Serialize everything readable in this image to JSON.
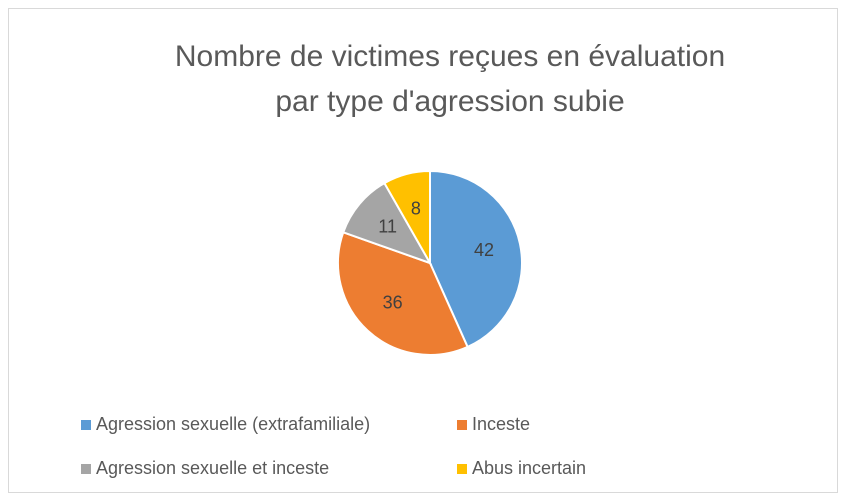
{
  "chart_data": {
    "type": "pie",
    "title": [
      "Nombre de victimes reçues en évaluation",
      "par type d'agression subie"
    ],
    "categories": [
      "Agression sexuelle (extrafamiliale)",
      "Inceste",
      "Agression sexuelle et inceste",
      "Abus incertain"
    ],
    "values": [
      42,
      36,
      11,
      8
    ],
    "colors": [
      "#5b9bd5",
      "#ed7d31",
      "#a5a5a5",
      "#ffc000"
    ],
    "legend": "bottom"
  }
}
